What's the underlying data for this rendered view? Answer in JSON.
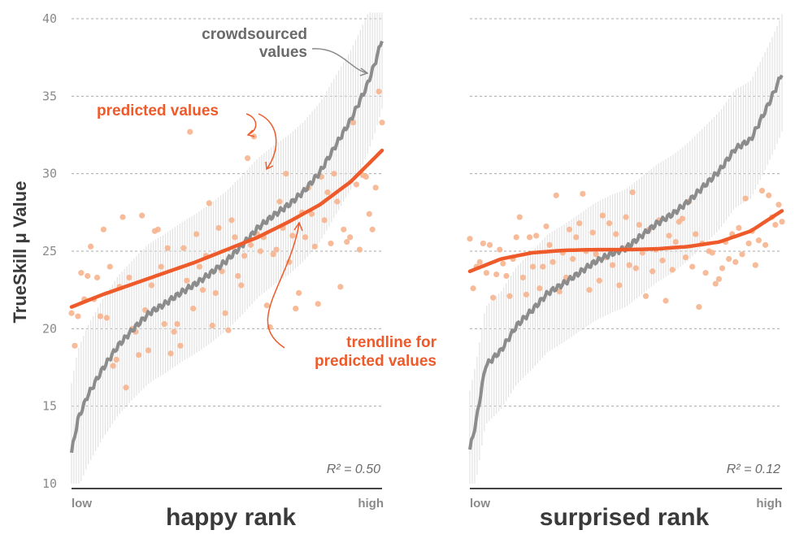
{
  "y_axis_label": "TrueSkill μ Value",
  "y_ticks": [
    "40",
    "35",
    "30",
    "25",
    "20",
    "15",
    "10"
  ],
  "colors": {
    "crowd": "#8c8c8c",
    "predicted": "#f6b48e",
    "trend": "#ee5a2a",
    "errorbar": "#e2e2e2"
  },
  "annotations": {
    "crowd_line1": "crowdsourced",
    "crowd_line2": "values",
    "pred": "predicted values",
    "trend_line1": "trendline for",
    "trend_line2": "predicted values"
  },
  "chart_data": [
    {
      "type": "scatter",
      "xlabel": "happy rank",
      "x_low_label": "low",
      "x_high_label": "high",
      "ylabel": "TrueSkill μ Value",
      "ylim": [
        10,
        40
      ],
      "grid": true,
      "r2_label": "R² = 0.50",
      "series": [
        {
          "sorted_by_rank": true,
          "curve_rank": [
            0,
            0.02,
            0.05,
            0.1,
            0.15,
            0.2,
            0.25,
            0.3,
            0.35,
            0.4,
            0.45,
            0.5,
            0.55,
            0.6,
            0.65,
            0.7,
            0.75,
            0.8,
            0.85,
            0.9,
            0.95,
            0.98,
            1.0
          ],
          "curve_values": [
            12.0,
            14.1,
            15.6,
            17.4,
            18.9,
            20.0,
            21.0,
            21.6,
            22.3,
            22.9,
            23.6,
            24.4,
            25.4,
            26.5,
            27.3,
            28.0,
            28.9,
            30.1,
            31.8,
            33.5,
            35.6,
            37.3,
            38.7
          ],
          "errorbar_halfwidth": 4.5
        },
        {
          "predicted_values": [
            21.0,
            18.9,
            20.8,
            23.6,
            21.9,
            23.4,
            25.3,
            21.9,
            23.3,
            20.8,
            26.4,
            20.7,
            24.0,
            17.6,
            18.0,
            22.7,
            27.2,
            16.2,
            23.3,
            20.0,
            19.8,
            18.3,
            27.3,
            21.2,
            18.6,
            22.8,
            26.3,
            26.4,
            24.0,
            20.3,
            25.2,
            18.4,
            19.8,
            20.3,
            18.9,
            25.2,
            23.1,
            32.7,
            21.3,
            26.1,
            24.0,
            22.5,
            24.7,
            28.1,
            20.2,
            22.3,
            26.5,
            23.7,
            21.0,
            19.9,
            27.0,
            25.9,
            23.4,
            22.8,
            24.7,
            31.0,
            25.4,
            32.4,
            26.1,
            25.0,
            25.9,
            21.5,
            20.1,
            24.8,
            25.1,
            28.2,
            26.5,
            30.0,
            24.3,
            26.0,
            21.3,
            22.3,
            27.5,
            25.9,
            29.1,
            27.4,
            25.3,
            21.6,
            29.8,
            27.0,
            28.8,
            25.5,
            30.0,
            28.2,
            22.7,
            26.4,
            25.6,
            25.9,
            33.3,
            29.3,
            25.1,
            29.9,
            29.8,
            27.4,
            26.4,
            29.1,
            35.3,
            33.3
          ],
          "trend_rank": [
            0,
            0.1,
            0.2,
            0.3,
            0.4,
            0.5,
            0.6,
            0.7,
            0.8,
            0.9,
            1.0
          ],
          "trend_values": [
            21.4,
            22.2,
            22.9,
            23.6,
            24.3,
            25.1,
            25.9,
            26.9,
            28.0,
            29.5,
            31.5
          ]
        }
      ]
    },
    {
      "type": "scatter",
      "xlabel": "surprised rank",
      "x_low_label": "low",
      "x_high_label": "high",
      "ylim": [
        10,
        40
      ],
      "grid": true,
      "r2_label": "R² = 0.12",
      "series": [
        {
          "sorted_by_rank": true,
          "curve_rank": [
            0,
            0.02,
            0.05,
            0.1,
            0.15,
            0.2,
            0.25,
            0.3,
            0.35,
            0.4,
            0.45,
            0.5,
            0.55,
            0.6,
            0.65,
            0.7,
            0.75,
            0.8,
            0.85,
            0.9,
            0.95,
            0.98,
            1.0
          ],
          "curve_values": [
            12.2,
            14.0,
            17.6,
            18.6,
            20.2,
            21.2,
            22.3,
            22.9,
            23.6,
            24.3,
            24.8,
            25.2,
            26.0,
            26.8,
            27.4,
            28.2,
            29.2,
            30.2,
            31.6,
            32.2,
            34.2,
            35.5,
            36.5
          ],
          "errorbar_halfwidth": 3.8
        },
        {
          "predicted_values": [
            25.8,
            22.6,
            24.0,
            24.3,
            25.5,
            23.6,
            25.4,
            22.0,
            23.5,
            25.1,
            24.2,
            23.4,
            22.1,
            24.5,
            25.9,
            27.2,
            23.3,
            22.2,
            25.9,
            24.0,
            26.0,
            22.6,
            24.0,
            26.6,
            25.4,
            24.3,
            28.6,
            22.4,
            24.9,
            23.3,
            26.4,
            24.5,
            25.9,
            26.8,
            28.7,
            25.0,
            22.5,
            26.2,
            24.8,
            23.1,
            27.3,
            24.6,
            26.8,
            24.1,
            26.1,
            22.8,
            25.2,
            27.2,
            24.1,
            28.8,
            23.9,
            26.7,
            24.9,
            22.1,
            26.4,
            23.7,
            25.1,
            27.0,
            24.4,
            21.8,
            26.0,
            23.8,
            25.6,
            26.9,
            27.1,
            24.6,
            28.2,
            24.0,
            26.1,
            21.4,
            25.5,
            23.6,
            25.0,
            24.9,
            22.9,
            23.2,
            23.9,
            25.6,
            24.5,
            26.1,
            24.3,
            26.5,
            24.8,
            28.4,
            25.5,
            26.3,
            24.1,
            25.7,
            28.9,
            25.4,
            28.6,
            27.2,
            26.7,
            28.0,
            26.9
          ],
          "trend_rank": [
            0,
            0.1,
            0.2,
            0.3,
            0.4,
            0.5,
            0.6,
            0.7,
            0.8,
            0.9,
            1.0
          ],
          "trend_values": [
            23.7,
            24.5,
            24.9,
            25.05,
            25.1,
            25.1,
            25.15,
            25.3,
            25.6,
            26.3,
            27.6
          ]
        }
      ]
    }
  ]
}
